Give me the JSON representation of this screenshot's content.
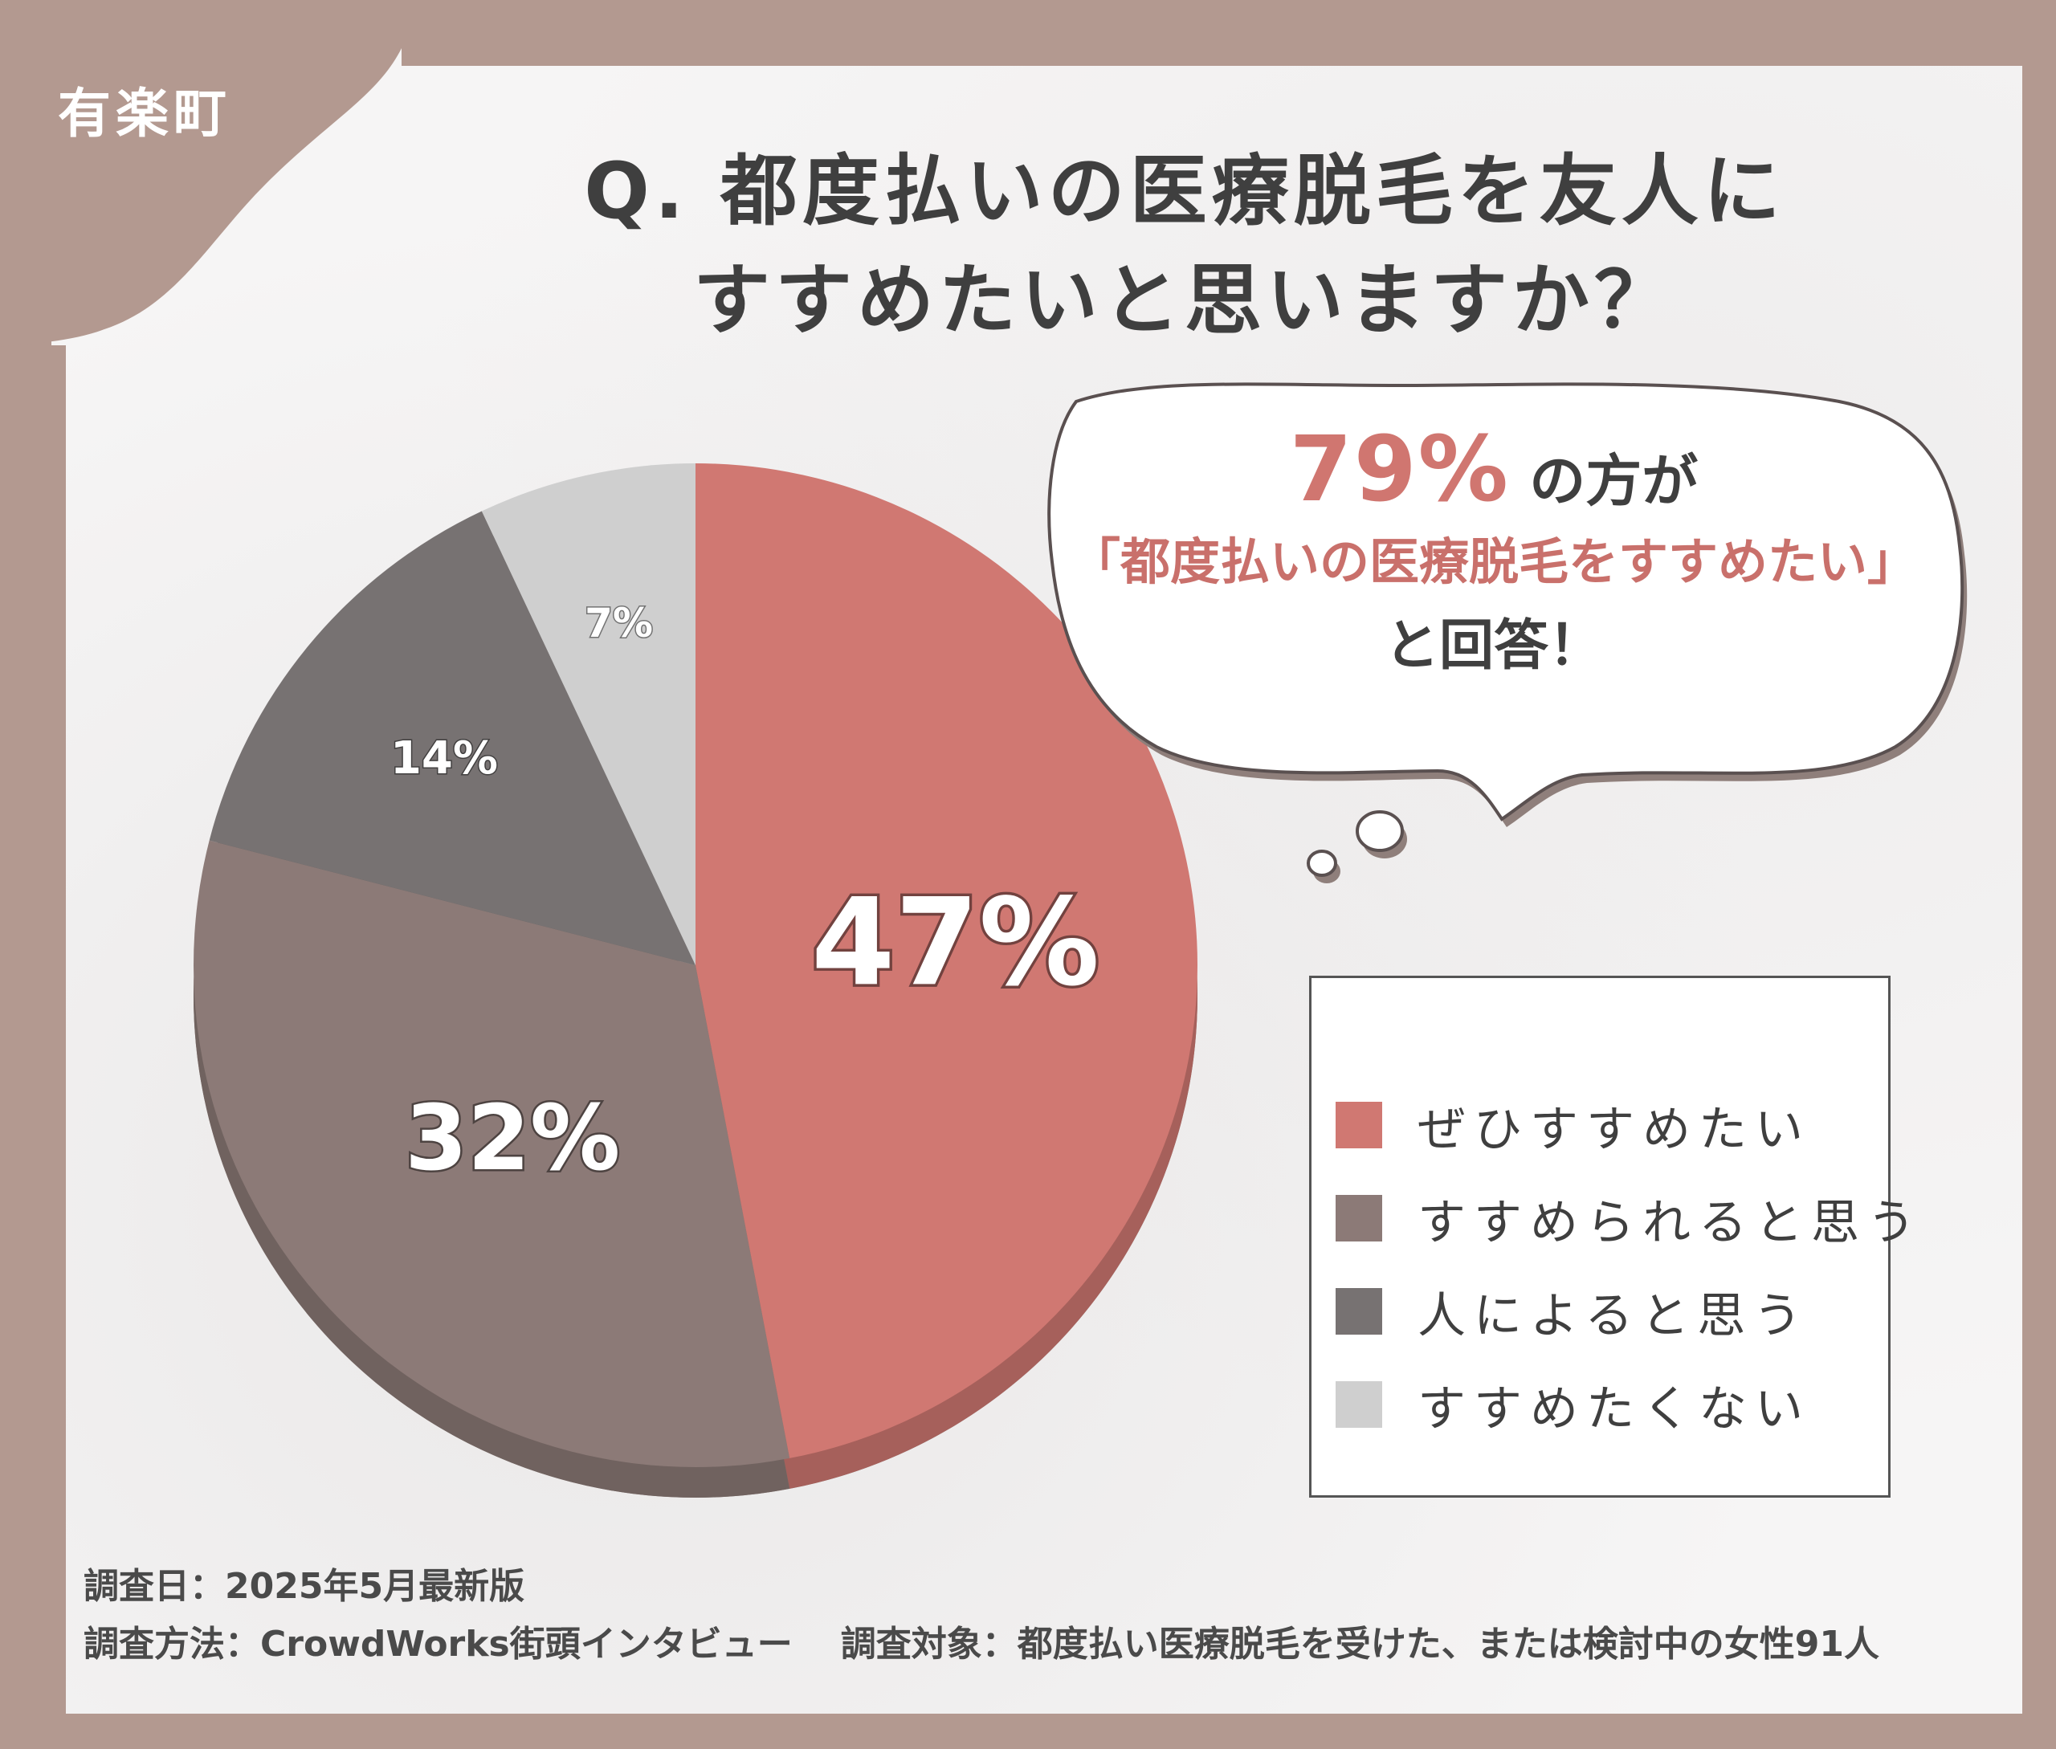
{
  "brand": "有楽町",
  "title": {
    "line1": "Q. 都度払いの医療脱毛を友人に",
    "line2": "すすめたいと思いますか？"
  },
  "callout": {
    "percent": "79%",
    "suffix": "の方が",
    "quote": "「都度払いの医療脱毛をすすめたい」",
    "ending": "と回答！"
  },
  "chart_data": {
    "type": "pie",
    "categories": [
      "ぜひすすめたい",
      "すすめられると思う",
      "人によると思う",
      "すすめたくない"
    ],
    "values": [
      47,
      32,
      14,
      7
    ],
    "value_labels": [
      "47%",
      "32%",
      "14%",
      "7%"
    ],
    "colors": [
      "#d07872",
      "#8c7a77",
      "#777272",
      "#cfcfcf"
    ],
    "legend_position": "right"
  },
  "legend": {
    "items": [
      {
        "label": "ぜひすすめたい",
        "color": "#d07872"
      },
      {
        "label": "すすめられると思う",
        "color": "#8c7a77"
      },
      {
        "label": "人によると思う",
        "color": "#777272"
      },
      {
        "label": "すすめたくない",
        "color": "#cfcfcf"
      }
    ]
  },
  "footer": {
    "date": "調査日：2025年5月最新版",
    "method": "調査方法：CrowdWorks街頭インタビュー",
    "target": "調査対象：都度払い医療脱毛を受けた、または検討中の女性91人"
  }
}
